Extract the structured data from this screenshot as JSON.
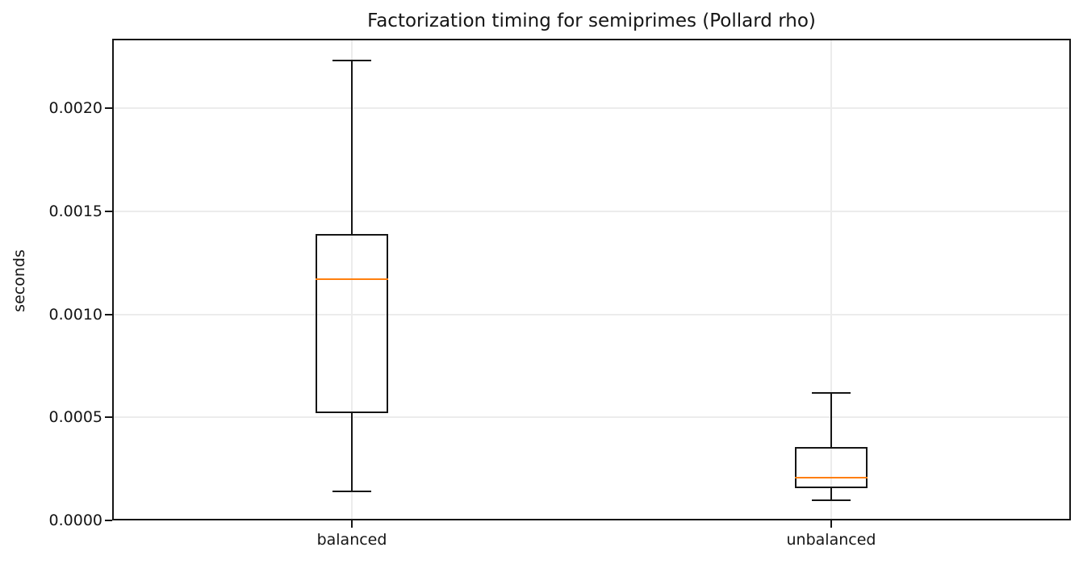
{
  "chart_data": {
    "type": "boxplot",
    "title": "Factorization timing for semiprimes (Pollard rho)",
    "xlabel": "",
    "ylabel": "seconds",
    "categories": [
      "balanced",
      "unbalanced"
    ],
    "series": [
      {
        "name": "balanced",
        "whislo": 0.00014,
        "q1": 0.00052,
        "med": 0.00117,
        "q3": 0.00139,
        "whishi": 0.00223,
        "fliers": []
      },
      {
        "name": "unbalanced",
        "whislo": 9.8e-05,
        "q1": 0.000155,
        "med": 0.000207,
        "q3": 0.000355,
        "whishi": 0.00062,
        "fliers": []
      }
    ],
    "yticks": [
      0.0,
      0.0005,
      0.001,
      0.0015,
      0.002
    ],
    "ytick_labels": [
      "0.0000",
      "0.0005",
      "0.0010",
      "0.0015",
      "0.0020"
    ],
    "ylim": [
      0.0,
      0.002336
    ],
    "grid": "both",
    "legend": "none",
    "colors": {
      "box": "#151515",
      "median": "#ff7f0e",
      "grid": "#ececec",
      "text": "#151515",
      "background": "#ffffff"
    }
  }
}
